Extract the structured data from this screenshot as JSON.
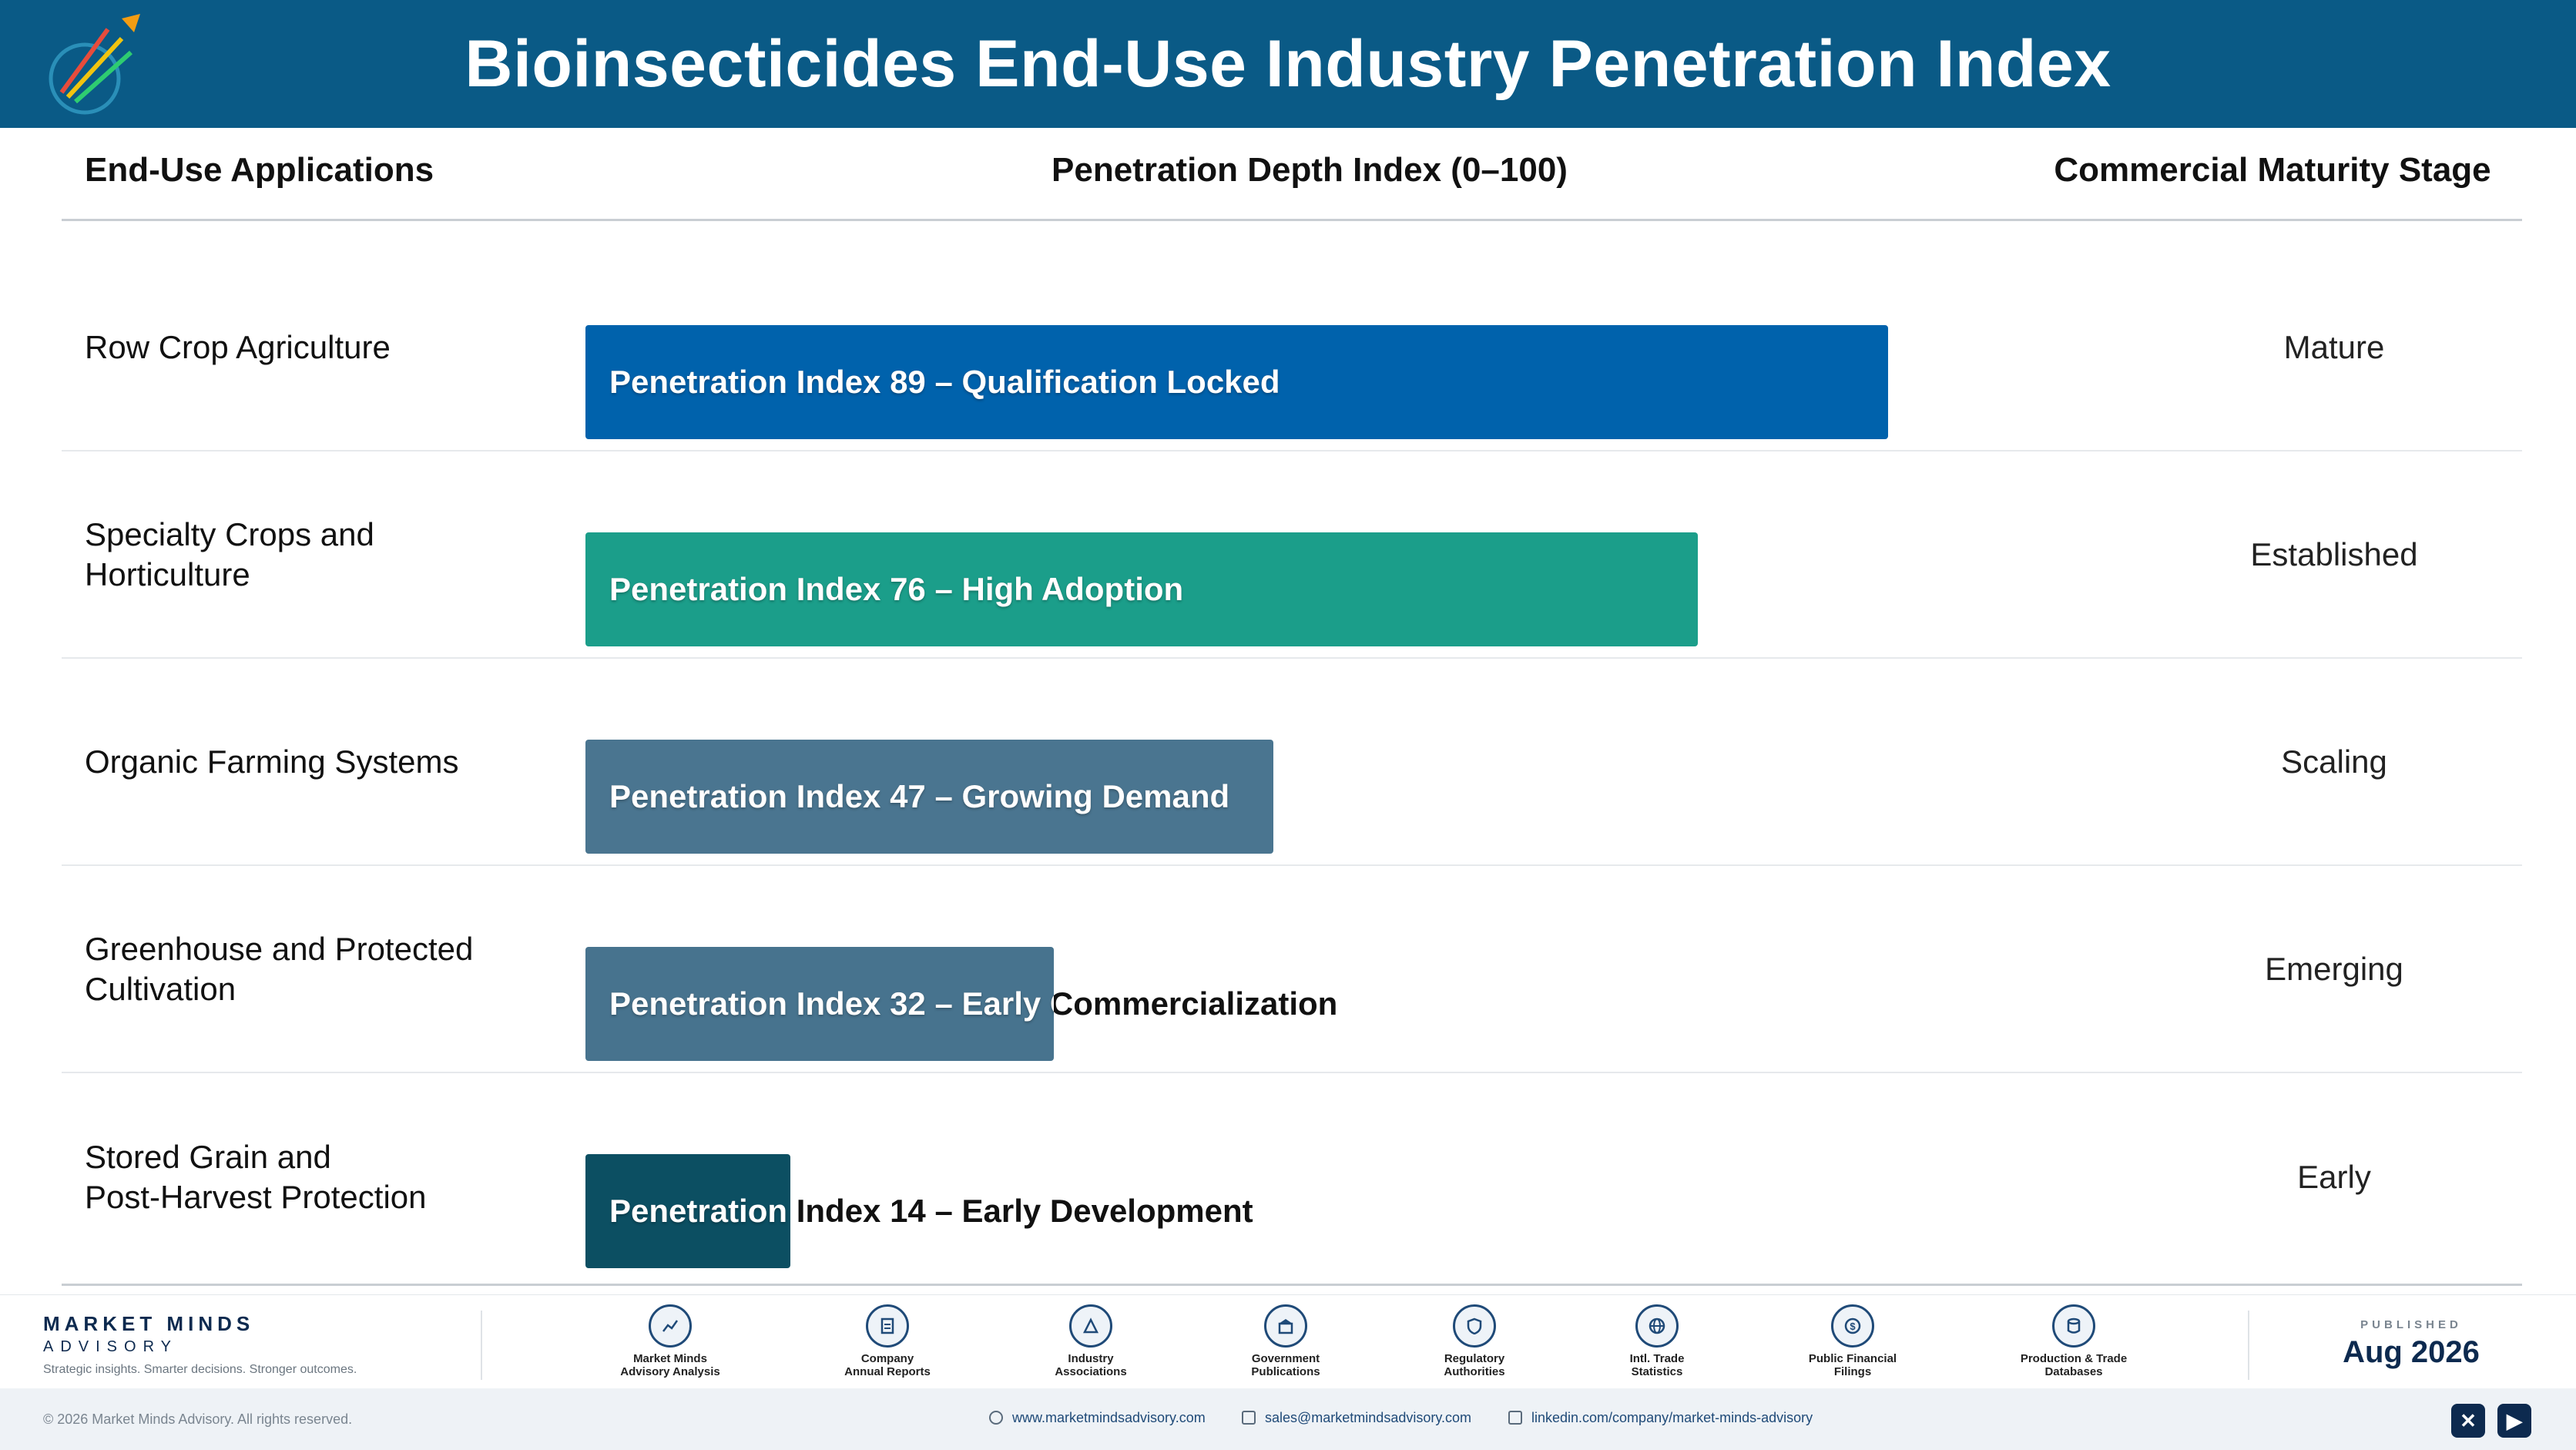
{
  "header": {
    "title": "Bioinsecticides End-Use Industry Penetration Index"
  },
  "columns": {
    "applications": "End-Use Applications",
    "index": "Penetration Depth Index (0–100)",
    "stage": "Commercial Maturity Stage"
  },
  "chart_data": {
    "type": "bar",
    "orientation": "horizontal",
    "title": "Bioinsecticides End-Use Industry Penetration Index",
    "xlabel": "Penetration Depth Index (0–100)",
    "xlim": [
      0,
      100
    ],
    "categories": [
      "Row Crop Agriculture",
      "Specialty Crops and\nHorticulture",
      "Organic Farming Systems",
      "Greenhouse and Protected\nCultivation",
      "Stored Grain and\nPost-Harvest Protection"
    ],
    "values": [
      89,
      76,
      47,
      32,
      14
    ],
    "bar_labels": [
      "Penetration Index 89 – Qualification Locked",
      "Penetration Index 76 – High Adoption",
      "Penetration Index 47 – Growing Demand",
      "Penetration Index 32 – Early Commercialization",
      "Penetration Index 14 – Early Development"
    ],
    "stages": [
      "Mature",
      "Established",
      "Scaling",
      "Emerging",
      "Early"
    ],
    "colors": [
      "#0062ac",
      "#1b9e8a",
      "#4a7590",
      "#47738e",
      "#0c4f62"
    ],
    "grid": false
  },
  "footer": {
    "brand_name": "MARKET MINDS",
    "brand_sub": "ADVISORY",
    "tagline": "Strategic insights. Smarter decisions. Stronger outcomes.",
    "sources": [
      {
        "label": "Market Minds\nAdvisory Analysis",
        "icon": "chart-line-icon"
      },
      {
        "label": "Company\nAnnual Reports",
        "icon": "document-icon"
      },
      {
        "label": "Industry\nAssociations",
        "icon": "network-icon"
      },
      {
        "label": "Government\nPublications",
        "icon": "building-icon"
      },
      {
        "label": "Regulatory\nAuthorities",
        "icon": "shield-icon"
      },
      {
        "label": "Intl. Trade\nStatistics",
        "icon": "globe-icon"
      },
      {
        "label": "Public Financial\nFilings",
        "icon": "dollar-icon"
      },
      {
        "label": "Production & Trade\nDatabases",
        "icon": "database-icon"
      }
    ],
    "published_label": "PUBLISHED",
    "published_date": "Aug 2026",
    "copyright": "© 2026 Market Minds Advisory. All rights reserved.",
    "website": "www.marketmindsadvisory.com",
    "email": "sales@marketmindsadvisory.com",
    "linkedin": "linkedin.com/company/market-minds-advisory",
    "social": [
      "x-icon",
      "youtube-icon"
    ]
  }
}
